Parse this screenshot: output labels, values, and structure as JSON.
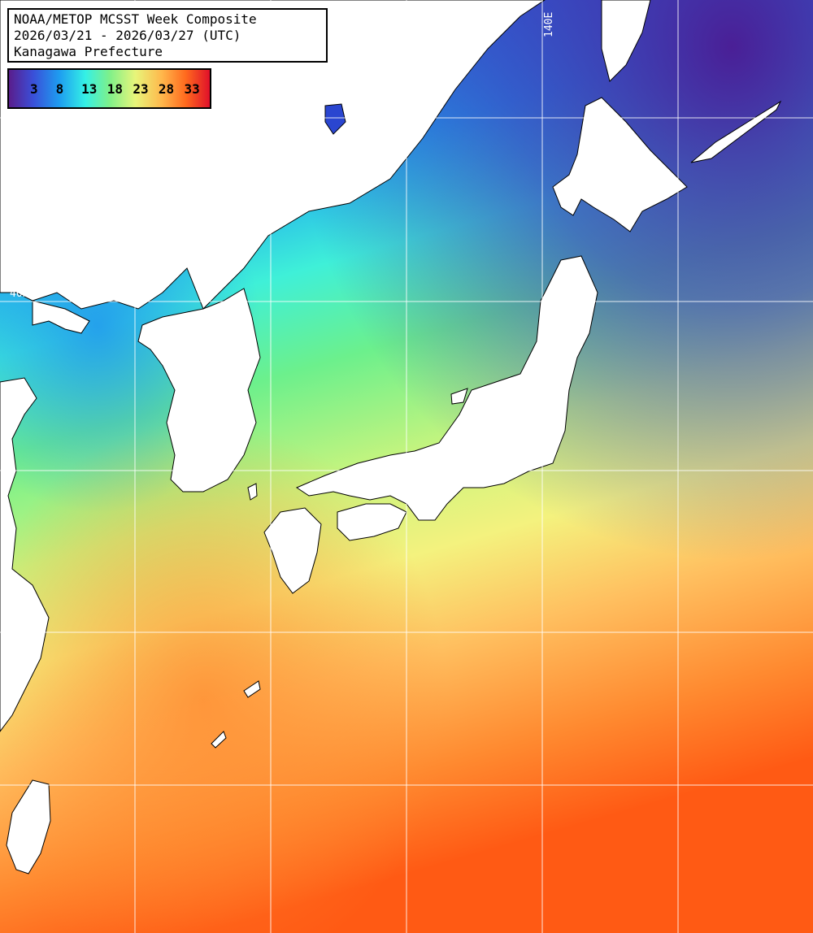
{
  "title": {
    "line1": "NOAA/METOP MCSST Week Composite",
    "line2": "2026/03/21 - 2026/03/27 (UTC)",
    "line3": "Kanagawa Prefecture"
  },
  "legend": {
    "ticks": [
      "3",
      "8",
      "13",
      "18",
      "23",
      "28",
      "33"
    ],
    "gradient_colors": [
      "#5a1d8c",
      "#3a4fd8",
      "#1e9cf0",
      "#34f0e6",
      "#7ef08a",
      "#e8f57a",
      "#ffb84c",
      "#ff6a1e",
      "#e0102a"
    ]
  },
  "grid": {
    "lon_label": "140E",
    "lat_label": "40N"
  },
  "colors": {
    "land": "#ffffff",
    "gridline": "#ffffff",
    "coast": "#000000"
  }
}
